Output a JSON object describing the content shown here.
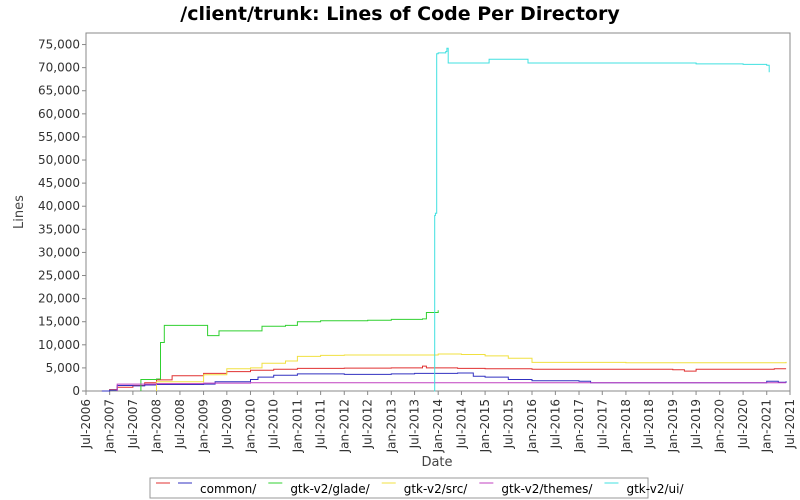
{
  "chart_data": {
    "type": "line",
    "title": "/client/trunk: Lines of Code Per Directory",
    "xlabel": "Date",
    "ylabel": "Lines",
    "xlim": [
      "2006-07-01",
      "2021-07-01"
    ],
    "ylim": [
      0,
      77500
    ],
    "yticks": [
      0,
      5000,
      10000,
      15000,
      20000,
      25000,
      30000,
      35000,
      40000,
      45000,
      50000,
      55000,
      60000,
      65000,
      70000,
      75000
    ],
    "xticks": [
      "Jul-2006",
      "Jan-2007",
      "Jul-2007",
      "Jan-2008",
      "Jul-2008",
      "Jan-2009",
      "Jul-2009",
      "Jan-2010",
      "Jul-2010",
      "Jan-2011",
      "Jul-2011",
      "Jan-2012",
      "Jul-2012",
      "Jan-2013",
      "Jul-2013",
      "Jan-2014",
      "Jul-2014",
      "Jan-2015",
      "Jul-2015",
      "Jan-2016",
      "Jul-2016",
      "Jan-2017",
      "Jul-2017",
      "Jan-2018",
      "Jul-2018",
      "Jan-2019",
      "Jul-2019",
      "Jan-2020",
      "Jul-2020",
      "Jan-2021",
      "Jul-2021"
    ],
    "legend_position": "bottom",
    "grid": false,
    "series": [
      {
        "name": "",
        "color": "#e03030",
        "points": [
          [
            "2006-11-01",
            0
          ],
          [
            "2007-01-01",
            300
          ],
          [
            "2007-03-01",
            800
          ],
          [
            "2007-07-01",
            1200
          ],
          [
            "2007-10-01",
            1800
          ],
          [
            "2008-01-01",
            2400
          ],
          [
            "2008-05-01",
            3300
          ],
          [
            "2009-01-01",
            3800
          ],
          [
            "2009-07-01",
            4200
          ],
          [
            "2010-01-01",
            4500
          ],
          [
            "2010-07-01",
            4700
          ],
          [
            "2011-01-01",
            4900
          ],
          [
            "2012-01-01",
            4950
          ],
          [
            "2013-01-01",
            5000
          ],
          [
            "2013-09-01",
            5400
          ],
          [
            "2013-10-01",
            5000
          ],
          [
            "2014-06-01",
            4900
          ],
          [
            "2015-01-01",
            4800
          ],
          [
            "2016-01-01",
            4700
          ],
          [
            "2017-01-01",
            4700
          ],
          [
            "2019-01-01",
            4600
          ],
          [
            "2019-04-01",
            4300
          ],
          [
            "2019-07-01",
            4700
          ],
          [
            "2021-03-01",
            4800
          ],
          [
            "2021-06-01",
            4800
          ]
        ]
      },
      {
        "name": "common/",
        "color": "#3030c0",
        "points": [
          [
            "2006-11-01",
            0
          ],
          [
            "2007-01-01",
            200
          ],
          [
            "2007-03-01",
            1200
          ],
          [
            "2007-07-01",
            1100
          ],
          [
            "2007-10-01",
            1300
          ],
          [
            "2008-01-01",
            1400
          ],
          [
            "2009-01-01",
            1500
          ],
          [
            "2009-04-01",
            2000
          ],
          [
            "2010-01-01",
            2500
          ],
          [
            "2010-03-01",
            3000
          ],
          [
            "2010-07-01",
            3400
          ],
          [
            "2011-01-01",
            3700
          ],
          [
            "2012-01-01",
            3600
          ],
          [
            "2013-01-01",
            3700
          ],
          [
            "2013-07-01",
            3800
          ],
          [
            "2014-06-01",
            3900
          ],
          [
            "2014-10-01",
            3200
          ],
          [
            "2015-01-01",
            3000
          ],
          [
            "2015-07-01",
            2500
          ],
          [
            "2016-01-01",
            2200
          ],
          [
            "2017-01-01",
            2100
          ],
          [
            "2017-04-01",
            1800
          ],
          [
            "2020-01-01",
            1800
          ],
          [
            "2020-10-01",
            1800
          ],
          [
            "2021-01-01",
            2100
          ],
          [
            "2021-04-01",
            1900
          ],
          [
            "2021-06-01",
            2100
          ]
        ]
      },
      {
        "name": "gtk-v2/glade/",
        "color": "#30d030",
        "points": [
          [
            "2007-09-01",
            0
          ],
          [
            "2007-09-01",
            2500
          ],
          [
            "2008-01-01",
            2600
          ],
          [
            "2008-02-01",
            10500
          ],
          [
            "2008-03-01",
            14200
          ],
          [
            "2008-07-01",
            14200
          ],
          [
            "2009-01-01",
            14200
          ],
          [
            "2009-02-01",
            12000
          ],
          [
            "2009-04-01",
            12000
          ],
          [
            "2009-05-01",
            13000
          ],
          [
            "2010-03-01",
            13000
          ],
          [
            "2010-04-01",
            14000
          ],
          [
            "2010-10-01",
            14200
          ],
          [
            "2011-01-01",
            15000
          ],
          [
            "2011-07-01",
            15200
          ],
          [
            "2012-07-01",
            15300
          ],
          [
            "2013-01-01",
            15500
          ],
          [
            "2013-09-01",
            15600
          ],
          [
            "2013-10-01",
            17000
          ],
          [
            "2014-01-01",
            17500
          ]
        ]
      },
      {
        "name": "gtk-v2/src/",
        "color": "#f0e040",
        "points": [
          [
            "2008-01-01",
            0
          ],
          [
            "2008-01-01",
            2000
          ],
          [
            "2009-01-01",
            3500
          ],
          [
            "2009-07-01",
            4800
          ],
          [
            "2010-01-01",
            5000
          ],
          [
            "2010-04-01",
            6000
          ],
          [
            "2010-10-01",
            6500
          ],
          [
            "2011-01-01",
            7500
          ],
          [
            "2011-07-01",
            7700
          ],
          [
            "2012-01-01",
            7800
          ],
          [
            "2013-01-01",
            7800
          ],
          [
            "2014-01-01",
            8000
          ],
          [
            "2014-07-01",
            7900
          ],
          [
            "2015-01-01",
            7600
          ],
          [
            "2015-07-01",
            7100
          ],
          [
            "2016-01-01",
            6200
          ],
          [
            "2017-01-01",
            6200
          ],
          [
            "2018-01-01",
            6100
          ],
          [
            "2020-01-01",
            6100
          ],
          [
            "2021-06-01",
            6300
          ]
        ]
      },
      {
        "name": "gtk-v2/themes/",
        "color": "#c040c0",
        "points": [
          [
            "2007-03-01",
            0
          ],
          [
            "2007-03-01",
            1500
          ],
          [
            "2008-01-01",
            1600
          ],
          [
            "2009-01-01",
            1700
          ],
          [
            "2010-01-01",
            1800
          ],
          [
            "2021-06-01",
            1800
          ]
        ]
      },
      {
        "name": "gtk-v2/ui/",
        "color": "#40e0e0",
        "points": [
          [
            "2013-12-01",
            0
          ],
          [
            "2013-12-05",
            38000
          ],
          [
            "2013-12-10",
            38500
          ],
          [
            "2013-12-20",
            73000
          ],
          [
            "2014-01-01",
            73200
          ],
          [
            "2014-03-01",
            73500
          ],
          [
            "2014-03-10",
            74200
          ],
          [
            "2014-03-20",
            71000
          ],
          [
            "2014-07-01",
            71000
          ],
          [
            "2015-01-01",
            71000
          ],
          [
            "2015-02-01",
            71800
          ],
          [
            "2015-07-01",
            71800
          ],
          [
            "2015-11-01",
            71800
          ],
          [
            "2015-12-01",
            71000
          ],
          [
            "2016-07-01",
            71000
          ],
          [
            "2017-07-01",
            71000
          ],
          [
            "2018-07-01",
            71000
          ],
          [
            "2019-07-01",
            70800
          ],
          [
            "2020-07-01",
            70700
          ],
          [
            "2021-01-01",
            70500
          ],
          [
            "2021-01-20",
            69000
          ]
        ]
      }
    ]
  }
}
